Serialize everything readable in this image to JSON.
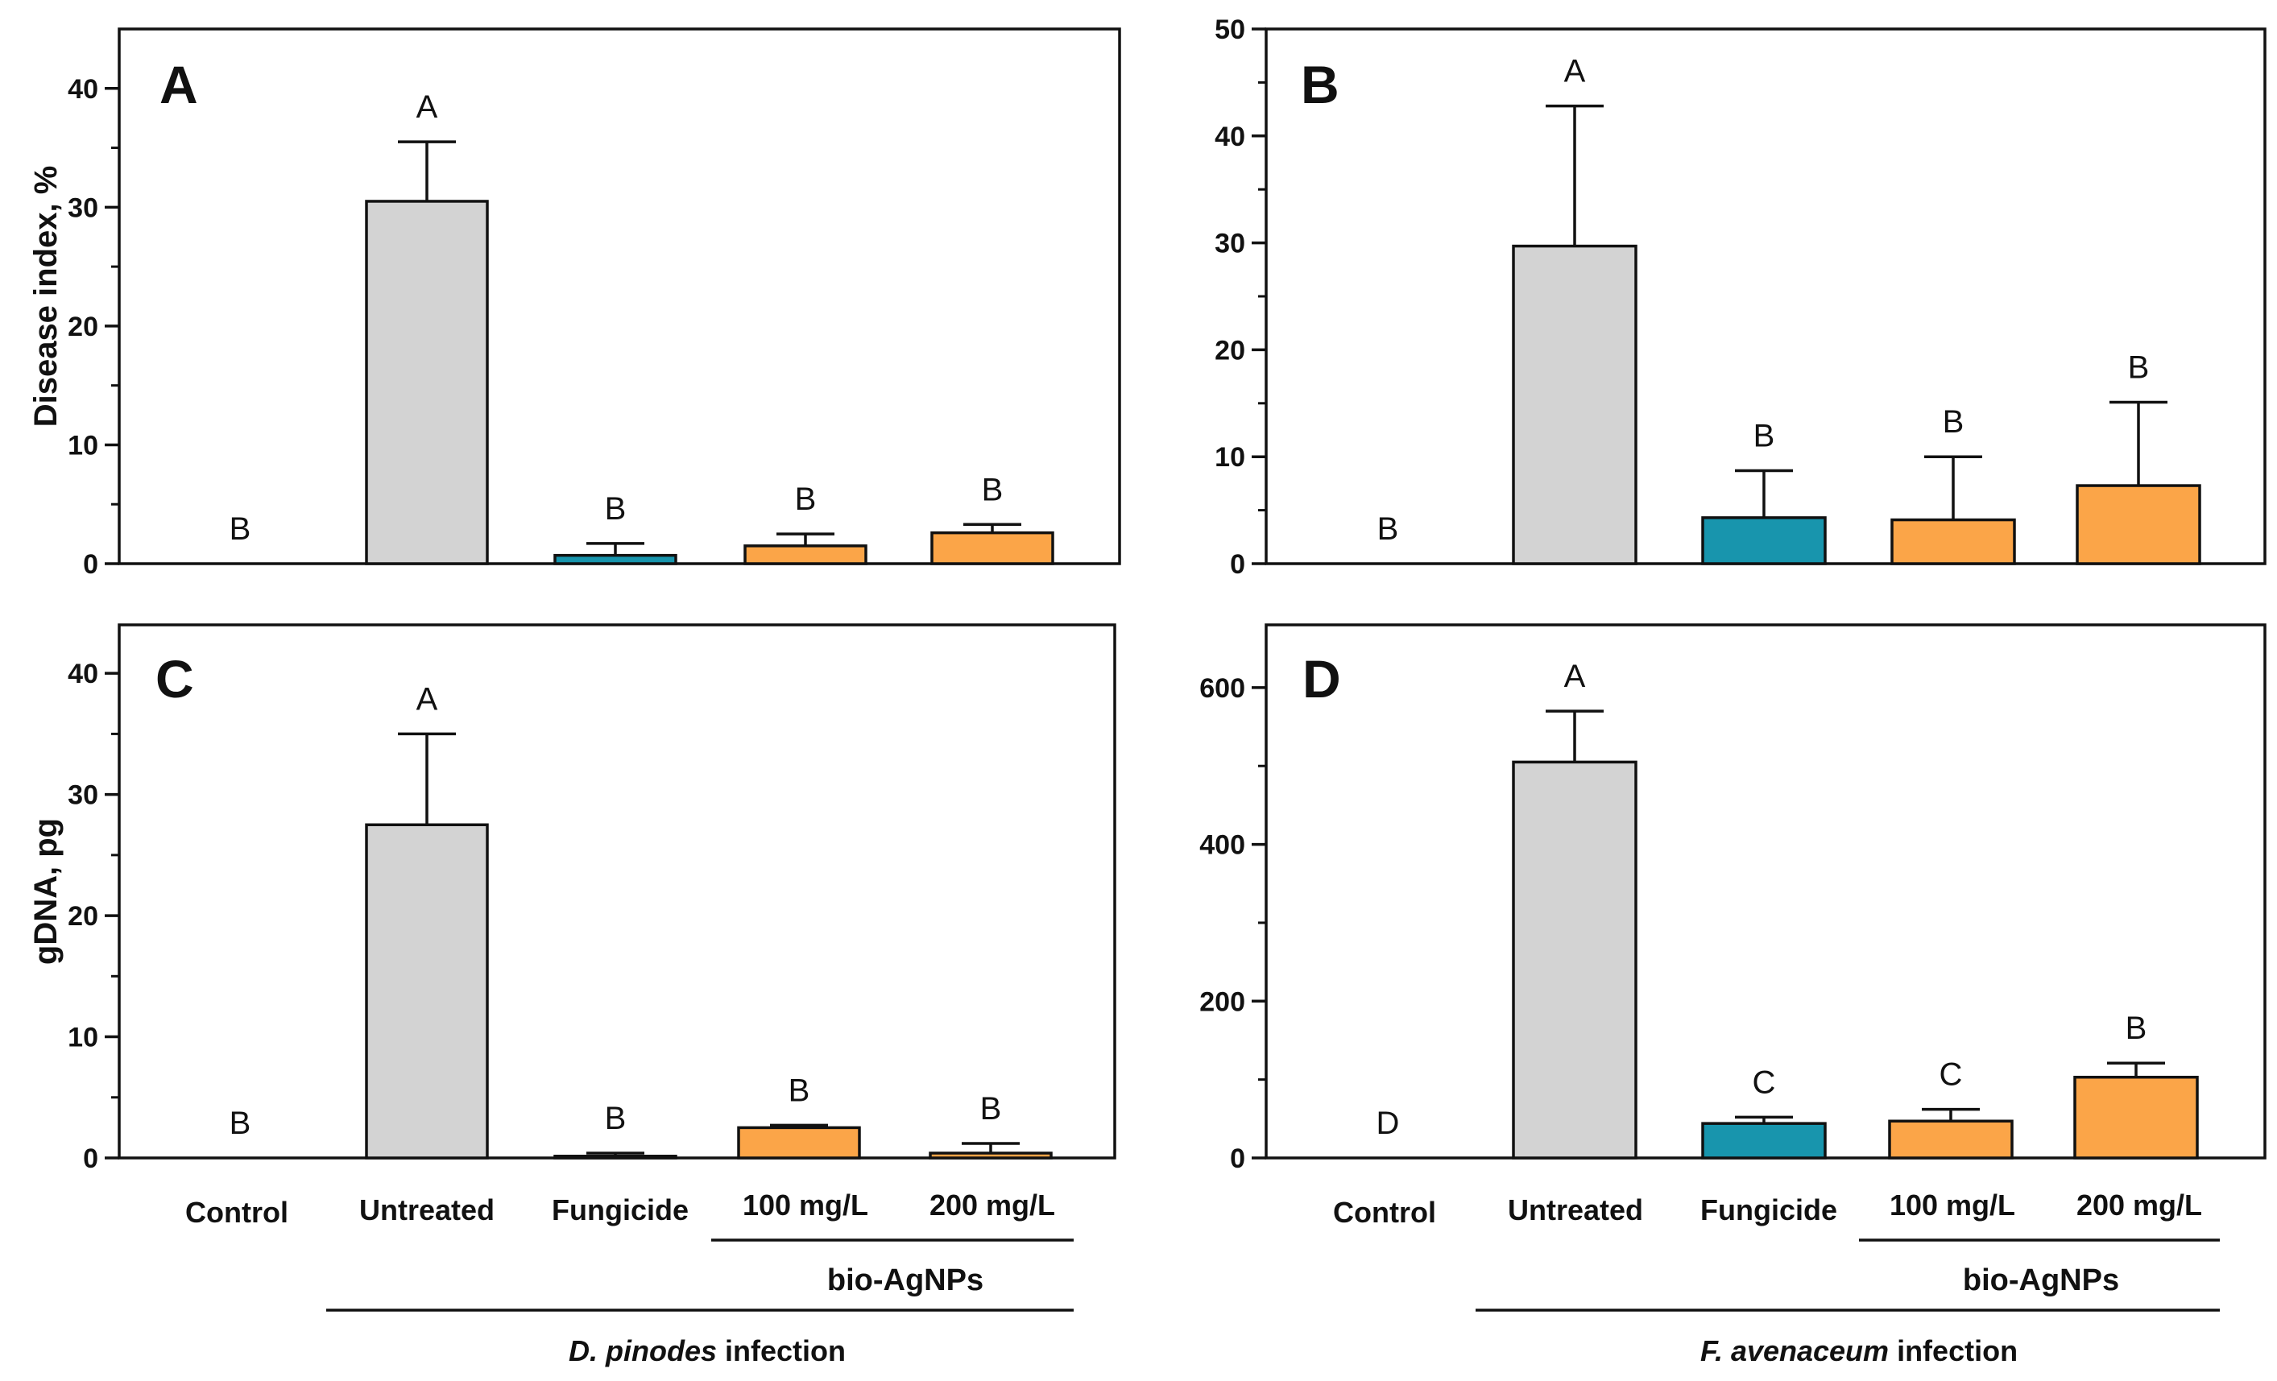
{
  "colors": {
    "Control": "#ffffff",
    "Untreated": "#d3d3d3",
    "Fungicide": "#1895ad",
    "100 mg/L": "#fba548",
    "200 mg/L": "#fba548",
    "axis": "#111111"
  },
  "categories": [
    "Control",
    "Untreated",
    "Fungicide",
    "100 mg/L",
    "200 mg/L"
  ],
  "group_label": "bio-AgNPs",
  "infections": [
    {
      "italic": "D. pinodes",
      "rest": " infection"
    },
    {
      "italic": "F. avenaceum",
      "rest": " infection"
    }
  ],
  "chart_data": [
    {
      "type": "bar",
      "panel": "A",
      "ylabel": "Disease index, %",
      "ylim": [
        0,
        45
      ],
      "yticks": [
        0,
        10,
        20,
        30,
        40
      ],
      "categories": [
        "Control",
        "Untreated",
        "Fungicide",
        "100 mg/L",
        "200 mg/L"
      ],
      "values": [
        0,
        30.5,
        0.7,
        1.5,
        2.6
      ],
      "errors": [
        0,
        5,
        1,
        1,
        0.7
      ],
      "significance": [
        "B",
        "A",
        "B",
        "B",
        "B"
      ]
    },
    {
      "type": "bar",
      "panel": "B",
      "ylabel": "",
      "ylim": [
        0,
        50
      ],
      "yticks": [
        0,
        10,
        20,
        30,
        40,
        50
      ],
      "categories": [
        "Control",
        "Untreated",
        "Fungicide",
        "100 mg/L",
        "200 mg/L"
      ],
      "values": [
        0,
        29.7,
        4.3,
        4.1,
        7.3
      ],
      "errors": [
        0,
        13.1,
        4.4,
        5.9,
        7.8
      ],
      "significance": [
        "B",
        "A",
        "B",
        "B",
        "B"
      ]
    },
    {
      "type": "bar",
      "panel": "C",
      "ylabel": "gDNA, pg",
      "ylim": [
        0,
        44
      ],
      "yticks": [
        0,
        10,
        20,
        30,
        40
      ],
      "categories": [
        "Control",
        "Untreated",
        "Fungicide",
        "100 mg/L",
        "200 mg/L"
      ],
      "values": [
        0,
        27.5,
        0.15,
        2.5,
        0.4
      ],
      "errors": [
        0,
        7.5,
        0.25,
        0.2,
        0.8
      ],
      "significance": [
        "B",
        "A",
        "B",
        "B",
        "B"
      ]
    },
    {
      "type": "bar",
      "panel": "D",
      "ylabel": "",
      "ylim": [
        0,
        680
      ],
      "yticks": [
        0,
        200,
        400,
        600
      ],
      "categories": [
        "Control",
        "Untreated",
        "Fungicide",
        "100 mg/L",
        "200 mg/L"
      ],
      "values": [
        0,
        505,
        44,
        47,
        103
      ],
      "errors": [
        0,
        65,
        8,
        15,
        18
      ],
      "significance": [
        "D",
        "A",
        "C",
        "C",
        "B"
      ]
    }
  ]
}
